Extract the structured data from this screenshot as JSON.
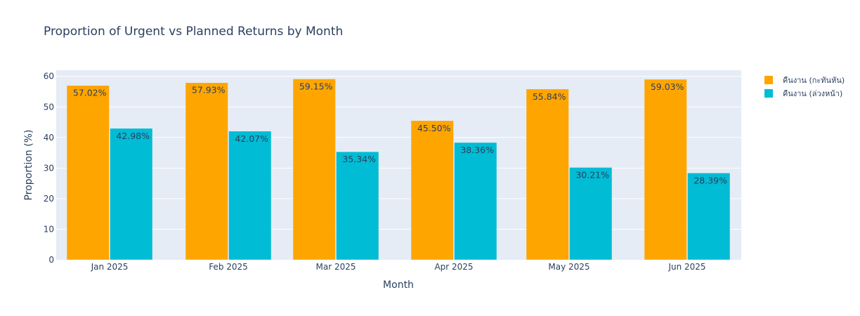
{
  "chart_data": {
    "type": "bar",
    "title": "Proportion of Urgent vs Planned Returns by Month",
    "xlabel": "Month",
    "ylabel": "Proportion (%)",
    "categories": [
      "Jan 2025",
      "Feb 2025",
      "Mar 2025",
      "Apr 2025",
      "May 2025",
      "Jun 2025"
    ],
    "ylim": [
      0,
      62
    ],
    "yticks": [
      0,
      10,
      20,
      30,
      40,
      50,
      60
    ],
    "grid": true,
    "legend_position": "top-right",
    "series": [
      {
        "name": "คืนงาน (กะทันหัน)",
        "color": "#FFA500",
        "values": [
          57.02,
          57.93,
          59.15,
          45.5,
          55.84,
          59.03
        ],
        "labels": [
          "57.02%",
          "57.93%",
          "59.15%",
          "45.50%",
          "55.84%",
          "59.03%"
        ]
      },
      {
        "name": "คืนงาน (ล่วงหน้า)",
        "color": "#00BCD4",
        "values": [
          42.98,
          42.07,
          35.34,
          38.36,
          30.21,
          28.39
        ],
        "labels": [
          "42.98%",
          "42.07%",
          "35.34%",
          "38.36%",
          "30.21%",
          "28.39%"
        ]
      }
    ]
  }
}
